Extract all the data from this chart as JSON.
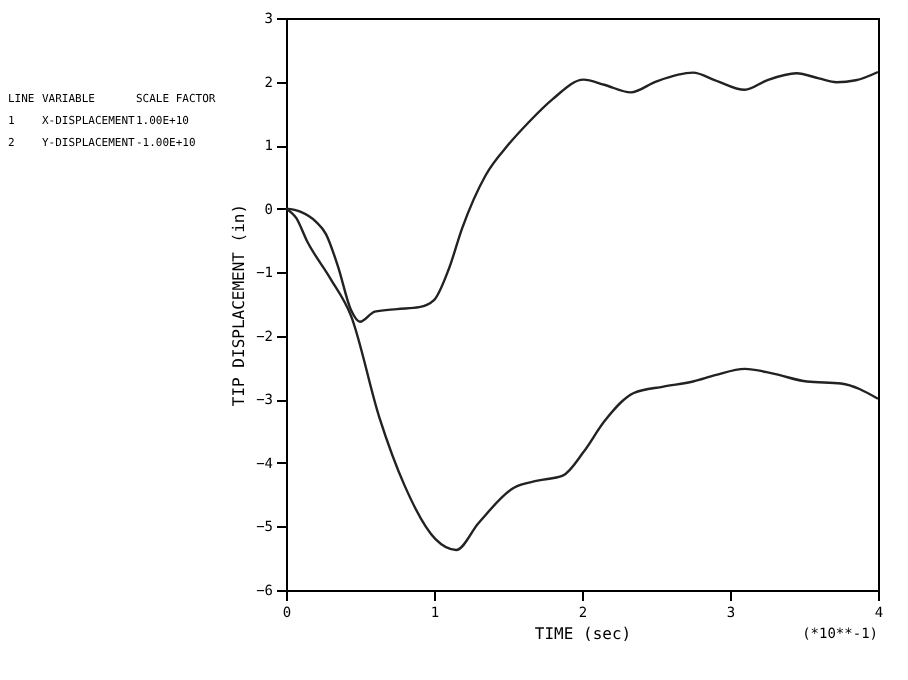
{
  "chart_data": {
    "type": "line",
    "xlabel": "TIME (sec)",
    "ylabel": "TIP DISPLACEMENT (in)",
    "xlim": [
      0,
      4
    ],
    "xticks": [
      0,
      1,
      2,
      3,
      4
    ],
    "ylim": [
      -6,
      3
    ],
    "yticks": [
      -6,
      -5,
      -4,
      -3,
      -2,
      -1,
      0,
      1,
      2,
      3
    ],
    "grid": false,
    "line_style": "solid",
    "series": [
      {
        "color": "#222222",
        "x": [
          0,
          0.1,
          0.2,
          0.27,
          0.35,
          0.44,
          0.5,
          0.6,
          0.75,
          0.9,
          1.0,
          1.1,
          1.19,
          1.35,
          1.5,
          1.64,
          1.8,
          2.01,
          2.15,
          2.33,
          2.5,
          2.75,
          2.9,
          3.1,
          3.25,
          3.45,
          3.6,
          3.72,
          3.85,
          4.0
        ],
        "values": [
          0,
          -0.05,
          -0.2,
          -0.4,
          -0.9,
          -1.6,
          -1.78,
          -1.62,
          -1.58,
          -1.55,
          -1.44,
          -0.95,
          -0.31,
          0.53,
          1.0,
          1.36,
          1.72,
          2.03,
          1.95,
          1.83,
          2.0,
          2.14,
          2.02,
          1.87,
          2.02,
          2.13,
          2.05,
          1.99,
          2.02,
          2.15
        ]
      },
      {
        "color": "#222222",
        "x": [
          0,
          0.07,
          0.14,
          0.3,
          0.44,
          0.63,
          0.8,
          1.01,
          1.15,
          1.3,
          1.54,
          1.7,
          1.87,
          2.01,
          2.15,
          2.35,
          2.55,
          2.75,
          2.9,
          3.1,
          3.3,
          3.52,
          3.75,
          4.0
        ],
        "values": [
          0,
          -0.15,
          -0.5,
          -1.1,
          -1.69,
          -3.28,
          -4.35,
          -5.2,
          -5.37,
          -4.95,
          -4.39,
          -4.28,
          -4.2,
          -3.83,
          -3.35,
          -2.9,
          -2.8,
          -2.72,
          -2.62,
          -2.52,
          -2.6,
          -2.72,
          -2.75,
          -2.99
        ]
      }
    ],
    "annotations": [
      "LINE",
      "VARIABLE",
      "SCALE FACTOR",
      "1",
      "X-DISPLACEMENT",
      "1.00E+10",
      "2",
      "Y-DISPLACEMENT",
      "-1.00E+10",
      "(*10**-1)"
    ]
  }
}
